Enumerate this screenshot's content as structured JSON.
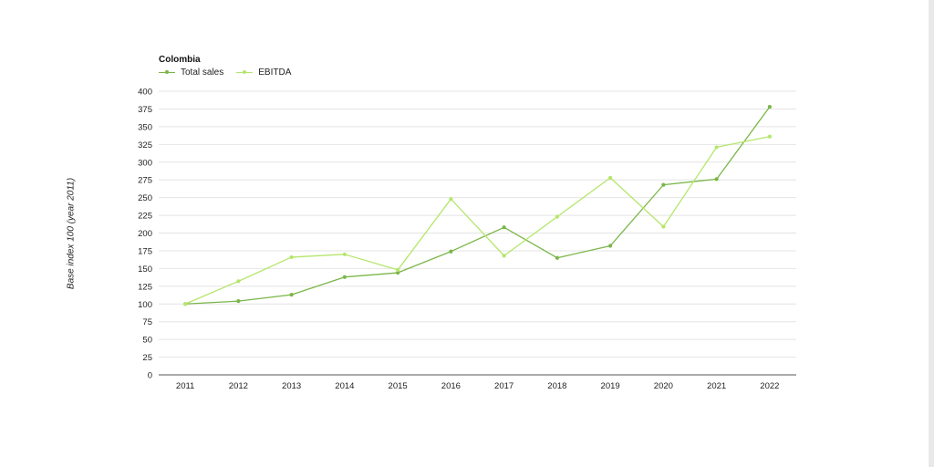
{
  "chart_data": {
    "type": "line",
    "title": "Colombia",
    "ylabel": "Base index 100 (year 2011)",
    "xlabel": "",
    "ylim": [
      0,
      400
    ],
    "yticks": [
      0,
      25,
      50,
      75,
      100,
      125,
      150,
      175,
      200,
      225,
      250,
      275,
      300,
      325,
      350,
      375,
      400
    ],
    "grid": true,
    "legend_position": "top-left",
    "categories": [
      "2011",
      "2012",
      "2013",
      "2014",
      "2015",
      "2016",
      "2017",
      "2018",
      "2019",
      "2020",
      "2021",
      "2022"
    ],
    "series": [
      {
        "name": "Total sales",
        "color": "#7ab648",
        "values": [
          100,
          104,
          113,
          138,
          144,
          174,
          208,
          165,
          182,
          268,
          276,
          378
        ]
      },
      {
        "name": "EBITDA",
        "color": "#b5e66c",
        "values": [
          100,
          132,
          166,
          170,
          148,
          248,
          168,
          223,
          278,
          209,
          321,
          336
        ]
      }
    ]
  }
}
